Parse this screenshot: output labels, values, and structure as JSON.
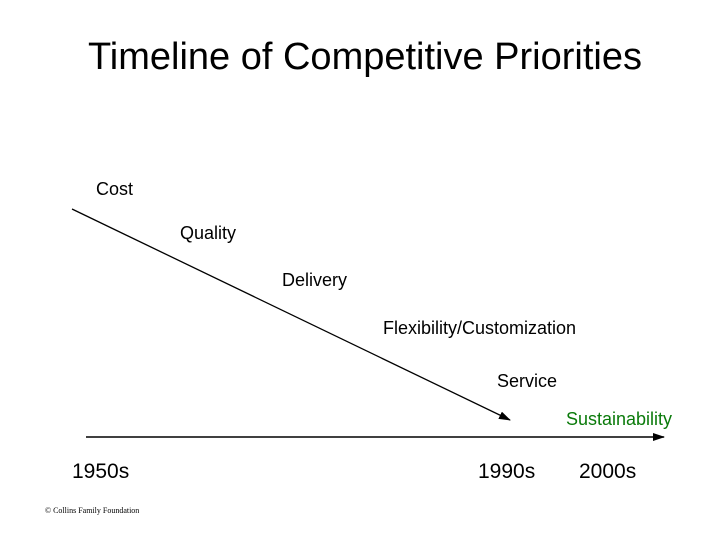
{
  "slide": {
    "title": "Timeline of Competitive Priorities",
    "priorities": [
      "Cost",
      "Quality",
      "Delivery",
      "Flexibility/Customization",
      "Service",
      "Sustainability"
    ],
    "eras": [
      "1950s",
      "1990s",
      "2000s"
    ],
    "copyright": "© Collins Family Foundation",
    "colors": {
      "text": "#000000",
      "sustainability": "#0a7a0a"
    }
  }
}
